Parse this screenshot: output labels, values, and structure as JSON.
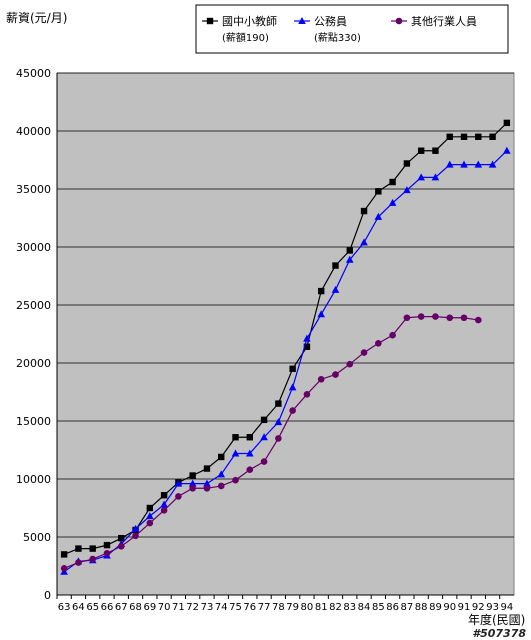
{
  "chart_data": {
    "type": "line",
    "ylabel": "薪資(元/月)",
    "xlabel": "年度(民國)",
    "ylim": [
      0,
      45000
    ],
    "yticks": [
      0,
      5000,
      10000,
      15000,
      20000,
      25000,
      30000,
      35000,
      40000,
      45000
    ],
    "x": [
      "63",
      "64",
      "65",
      "66",
      "67",
      "68",
      "69",
      "70",
      "71",
      "72",
      "73",
      "74",
      "75",
      "76",
      "77",
      "78",
      "79",
      "80",
      "81",
      "82",
      "83",
      "84",
      "85",
      "86",
      "87",
      "88",
      "89",
      "90",
      "91",
      "92",
      "93",
      "94"
    ],
    "grid": true,
    "legend_position": "top-right",
    "plot_background": "#c0c0c0",
    "series": [
      {
        "name": "國中小教師",
        "sub": "(薪額190)",
        "color": "#000000",
        "marker": "square",
        "values": [
          3500,
          4000,
          4000,
          4300,
          4900,
          5600,
          7500,
          8600,
          9700,
          10300,
          10900,
          11900,
          13600,
          13600,
          15100,
          16500,
          19500,
          21400,
          26200,
          28400,
          29700,
          33100,
          34800,
          35600,
          37200,
          38300,
          38300,
          39500,
          39500,
          39500,
          39500,
          40700
        ]
      },
      {
        "name": "公務員",
        "sub": "(薪點330)",
        "color": "#0000ff",
        "marker": "triangle",
        "values": [
          2000,
          2900,
          3000,
          3400,
          4400,
          5700,
          6800,
          7800,
          9600,
          9600,
          9600,
          10400,
          12200,
          12200,
          13600,
          14900,
          17900,
          22100,
          24200,
          26300,
          28900,
          30400,
          32600,
          33800,
          34900,
          36000,
          36000,
          37100,
          37100,
          37100,
          37100,
          38300
        ]
      },
      {
        "name": "其他行業人員",
        "sub": "",
        "color": "#660066",
        "marker": "circle",
        "values": [
          2300,
          2800,
          3100,
          3600,
          4200,
          5100,
          6200,
          7300,
          8500,
          9200,
          9200,
          9400,
          9900,
          10800,
          11500,
          13500,
          15900,
          17300,
          18600,
          19000,
          19900,
          20900,
          21700,
          22400,
          23900,
          24000,
          24000,
          23900,
          23900,
          23700,
          null,
          null
        ]
      }
    ]
  },
  "watermark": "#507378"
}
